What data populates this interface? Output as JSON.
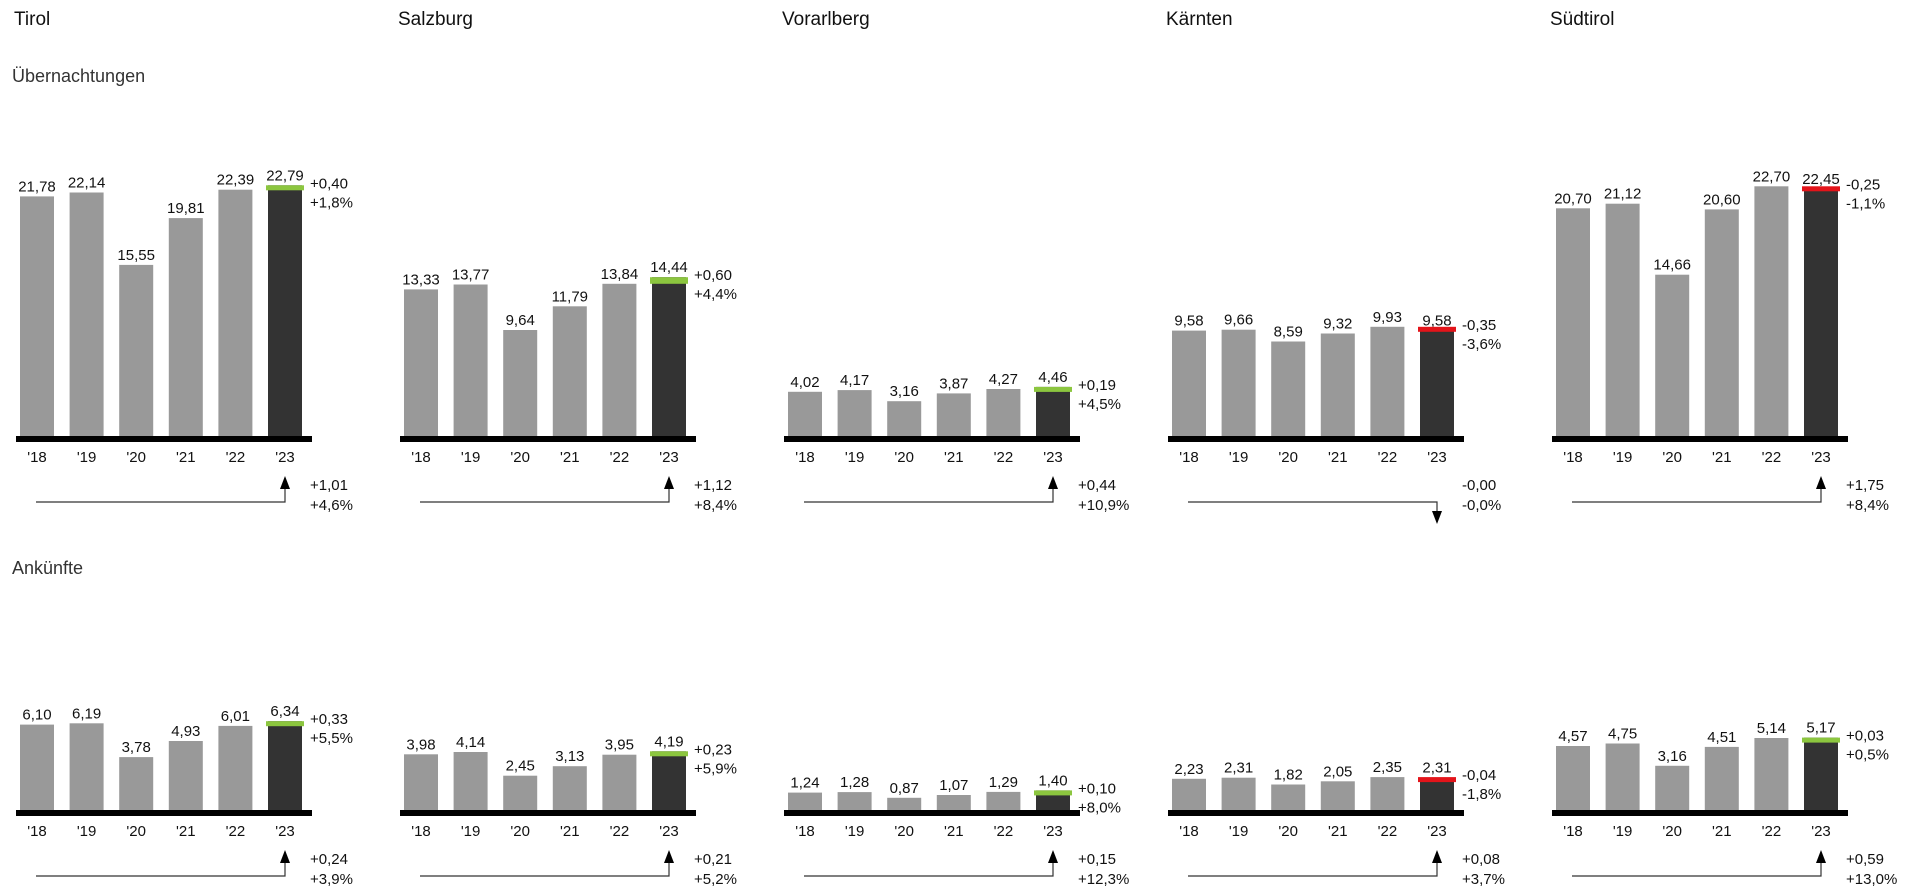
{
  "colors": {
    "bar_history": "#999999",
    "bar_current": "#333333",
    "axis": "#000000",
    "delta_positive": "#8cc63f",
    "delta_negative": "#e3141a",
    "arrow": "#333333"
  },
  "regions": [
    "Tirol",
    "Salzburg",
    "Vorarlberg",
    "Kärnten",
    "Südtirol"
  ],
  "rows": [
    {
      "label": "Übernachtungen"
    },
    {
      "label": "Ankünfte"
    }
  ],
  "chart_data": [
    {
      "type": "bar",
      "region": "Tirol",
      "measure": "Übernachtungen",
      "categories": [
        "'18",
        "'19",
        "'20",
        "'21",
        "'22",
        "'23"
      ],
      "values": [
        21.78,
        22.14,
        15.55,
        19.81,
        22.39,
        22.79
      ],
      "value_labels": [
        "21,78",
        "22,14",
        "15,55",
        "19,81",
        "22,39",
        "22,79"
      ],
      "delta_prev_abs": "+0,40",
      "delta_prev_pct": "+1,8%",
      "delta_prev_sign": "positive",
      "delta_base_abs": "+1,01",
      "delta_base_pct": "+4,6%",
      "delta_base_sign": "positive"
    },
    {
      "type": "bar",
      "region": "Salzburg",
      "measure": "Übernachtungen",
      "categories": [
        "'18",
        "'19",
        "'20",
        "'21",
        "'22",
        "'23"
      ],
      "values": [
        13.33,
        13.77,
        9.64,
        11.79,
        13.84,
        14.44
      ],
      "value_labels": [
        "13,33",
        "13,77",
        "9,64",
        "11,79",
        "13,84",
        "14,44"
      ],
      "delta_prev_abs": "+0,60",
      "delta_prev_pct": "+4,4%",
      "delta_prev_sign": "positive",
      "delta_base_abs": "+1,12",
      "delta_base_pct": "+8,4%",
      "delta_base_sign": "positive"
    },
    {
      "type": "bar",
      "region": "Vorarlberg",
      "measure": "Übernachtungen",
      "categories": [
        "'18",
        "'19",
        "'20",
        "'21",
        "'22",
        "'23"
      ],
      "values": [
        4.02,
        4.17,
        3.16,
        3.87,
        4.27,
        4.46
      ],
      "value_labels": [
        "4,02",
        "4,17",
        "3,16",
        "3,87",
        "4,27",
        "4,46"
      ],
      "delta_prev_abs": "+0,19",
      "delta_prev_pct": "+4,5%",
      "delta_prev_sign": "positive",
      "delta_base_abs": "+0,44",
      "delta_base_pct": "+10,9%",
      "delta_base_sign": "positive"
    },
    {
      "type": "bar",
      "region": "Kärnten",
      "measure": "Übernachtungen",
      "categories": [
        "'18",
        "'19",
        "'20",
        "'21",
        "'22",
        "'23"
      ],
      "values": [
        9.58,
        9.66,
        8.59,
        9.32,
        9.93,
        9.58
      ],
      "value_labels": [
        "9,58",
        "9,66",
        "8,59",
        "9,32",
        "9,93",
        "9,58"
      ],
      "delta_prev_abs": "-0,35",
      "delta_prev_pct": "-3,6%",
      "delta_prev_sign": "negative",
      "delta_base_abs": "-0,00",
      "delta_base_pct": "-0,0%",
      "delta_base_sign": "negative"
    },
    {
      "type": "bar",
      "region": "Südtirol",
      "measure": "Übernachtungen",
      "categories": [
        "'18",
        "'19",
        "'20",
        "'21",
        "'22",
        "'23"
      ],
      "values": [
        20.7,
        21.12,
        14.66,
        20.6,
        22.7,
        22.45
      ],
      "value_labels": [
        "20,70",
        "21,12",
        "14,66",
        "20,60",
        "22,70",
        "22,45"
      ],
      "delta_prev_abs": "-0,25",
      "delta_prev_pct": "-1,1%",
      "delta_prev_sign": "negative",
      "delta_base_abs": "+1,75",
      "delta_base_pct": "+8,4%",
      "delta_base_sign": "positive"
    },
    {
      "type": "bar",
      "region": "Tirol",
      "measure": "Ankünfte",
      "categories": [
        "'18",
        "'19",
        "'20",
        "'21",
        "'22",
        "'23"
      ],
      "values": [
        6.1,
        6.19,
        3.78,
        4.93,
        6.01,
        6.34
      ],
      "value_labels": [
        "6,10",
        "6,19",
        "3,78",
        "4,93",
        "6,01",
        "6,34"
      ],
      "delta_prev_abs": "+0,33",
      "delta_prev_pct": "+5,5%",
      "delta_prev_sign": "positive",
      "delta_base_abs": "+0,24",
      "delta_base_pct": "+3,9%",
      "delta_base_sign": "positive"
    },
    {
      "type": "bar",
      "region": "Salzburg",
      "measure": "Ankünfte",
      "categories": [
        "'18",
        "'19",
        "'20",
        "'21",
        "'22",
        "'23"
      ],
      "values": [
        3.98,
        4.14,
        2.45,
        3.13,
        3.95,
        4.19
      ],
      "value_labels": [
        "3,98",
        "4,14",
        "2,45",
        "3,13",
        "3,95",
        "4,19"
      ],
      "delta_prev_abs": "+0,23",
      "delta_prev_pct": "+5,9%",
      "delta_prev_sign": "positive",
      "delta_base_abs": "+0,21",
      "delta_base_pct": "+5,2%",
      "delta_base_sign": "positive"
    },
    {
      "type": "bar",
      "region": "Vorarlberg",
      "measure": "Ankünfte",
      "categories": [
        "'18",
        "'19",
        "'20",
        "'21",
        "'22",
        "'23"
      ],
      "values": [
        1.24,
        1.28,
        0.87,
        1.07,
        1.29,
        1.4
      ],
      "value_labels": [
        "1,24",
        "1,28",
        "0,87",
        "1,07",
        "1,29",
        "1,40"
      ],
      "delta_prev_abs": "+0,10",
      "delta_prev_pct": "+8,0%",
      "delta_prev_sign": "positive",
      "delta_base_abs": "+0,15",
      "delta_base_pct": "+12,3%",
      "delta_base_sign": "positive"
    },
    {
      "type": "bar",
      "region": "Kärnten",
      "measure": "Ankünfte",
      "categories": [
        "'18",
        "'19",
        "'20",
        "'21",
        "'22",
        "'23"
      ],
      "values": [
        2.23,
        2.31,
        1.82,
        2.05,
        2.35,
        2.31
      ],
      "value_labels": [
        "2,23",
        "2,31",
        "1,82",
        "2,05",
        "2,35",
        "2,31"
      ],
      "delta_prev_abs": "-0,04",
      "delta_prev_pct": "-1,8%",
      "delta_prev_sign": "negative",
      "delta_base_abs": "+0,08",
      "delta_base_pct": "+3,7%",
      "delta_base_sign": "positive"
    },
    {
      "type": "bar",
      "region": "Südtirol",
      "measure": "Ankünfte",
      "categories": [
        "'18",
        "'19",
        "'20",
        "'21",
        "'22",
        "'23"
      ],
      "values": [
        4.57,
        4.75,
        3.16,
        4.51,
        5.14,
        5.17
      ],
      "value_labels": [
        "4,57",
        "4,75",
        "3,16",
        "4,51",
        "5,14",
        "5,17"
      ],
      "delta_prev_abs": "+0,03",
      "delta_prev_pct": "+0,5%",
      "delta_prev_sign": "positive",
      "delta_base_abs": "+0,59",
      "delta_base_pct": "+13,0%",
      "delta_base_sign": "positive"
    }
  ]
}
